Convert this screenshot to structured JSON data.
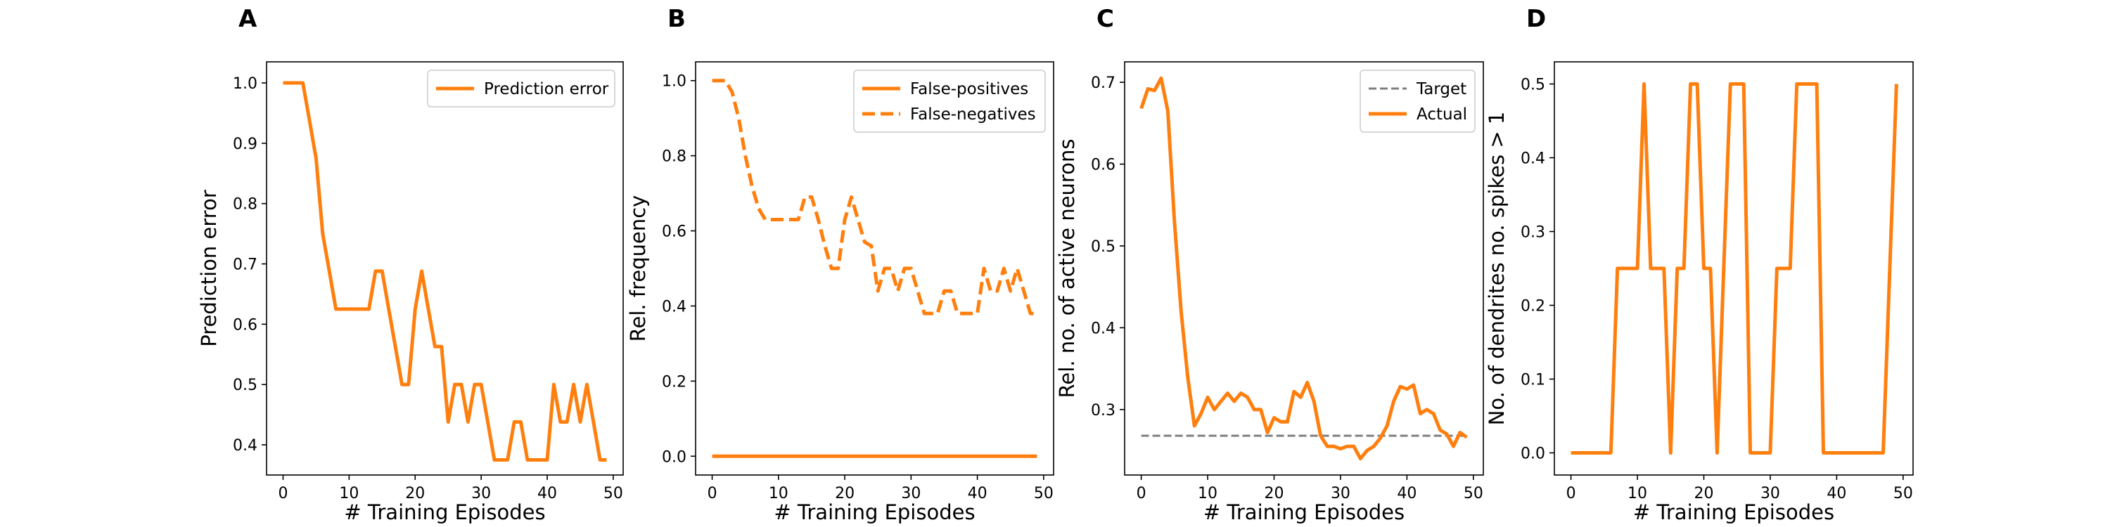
{
  "chart_data": [
    {
      "type": "line",
      "title": "A",
      "xlabel": "# Training Episodes",
      "ylabel": "Prediction error",
      "xlim": [
        -2.5,
        51.5
      ],
      "ylim": [
        0.35,
        1.035
      ],
      "xticks": [
        "0",
        "10",
        "20",
        "30",
        "40",
        "50"
      ],
      "yticks": [
        "0.4",
        "0.5",
        "0.6",
        "0.7",
        "0.8",
        "0.9",
        "1.0"
      ],
      "legend_position": "top-right",
      "grid": false,
      "series": [
        {
          "name": "Prediction error",
          "color": "#ff7f0e",
          "style": "solid",
          "x": [
            0,
            1,
            2,
            3,
            4,
            5,
            6,
            7,
            8,
            9,
            10,
            11,
            12,
            13,
            14,
            15,
            16,
            17,
            18,
            19,
            20,
            21,
            22,
            23,
            24,
            25,
            26,
            27,
            28,
            29,
            30,
            31,
            32,
            33,
            34,
            35,
            36,
            37,
            38,
            39,
            40,
            41,
            42,
            43,
            44,
            45,
            46,
            47,
            48,
            49
          ],
          "y": [
            1.0,
            1.0,
            1.0,
            1.0,
            0.938,
            0.875,
            0.75,
            0.688,
            0.625,
            0.625,
            0.625,
            0.625,
            0.625,
            0.625,
            0.688,
            0.688,
            0.625,
            0.563,
            0.5,
            0.5,
            0.625,
            0.688,
            0.625,
            0.563,
            0.563,
            0.438,
            0.5,
            0.5,
            0.438,
            0.5,
            0.5,
            0.438,
            0.375,
            0.375,
            0.375,
            0.438,
            0.438,
            0.375,
            0.375,
            0.375,
            0.375,
            0.5,
            0.438,
            0.438,
            0.5,
            0.438,
            0.5,
            0.438,
            0.375,
            0.375
          ]
        }
      ]
    },
    {
      "type": "line",
      "title": "B",
      "xlabel": "# Training Episodes",
      "ylabel": "Rel. frequency",
      "xlim": [
        -2.5,
        51.5
      ],
      "ylim": [
        -0.05,
        1.05
      ],
      "xticks": [
        "0",
        "10",
        "20",
        "30",
        "40",
        "50"
      ],
      "yticks": [
        "0.0",
        "0.2",
        "0.4",
        "0.6",
        "0.8",
        "1.0"
      ],
      "legend_position": "top-right",
      "grid": false,
      "series": [
        {
          "name": "False-positives",
          "color": "#ff7f0e",
          "style": "solid",
          "x": [
            0,
            1,
            2,
            3,
            4,
            5,
            6,
            7,
            8,
            9,
            10,
            11,
            12,
            13,
            14,
            15,
            16,
            17,
            18,
            19,
            20,
            21,
            22,
            23,
            24,
            25,
            26,
            27,
            28,
            29,
            30,
            31,
            32,
            33,
            34,
            35,
            36,
            37,
            38,
            39,
            40,
            41,
            42,
            43,
            44,
            45,
            46,
            47,
            48,
            49
          ],
          "y": [
            0,
            0,
            0,
            0,
            0,
            0,
            0,
            0,
            0,
            0,
            0,
            0,
            0,
            0,
            0,
            0,
            0,
            0,
            0,
            0,
            0,
            0,
            0,
            0,
            0,
            0,
            0,
            0,
            0,
            0,
            0,
            0,
            0,
            0,
            0,
            0,
            0,
            0,
            0,
            0,
            0,
            0,
            0,
            0,
            0,
            0,
            0,
            0,
            0,
            0
          ]
        },
        {
          "name": "False-negatives",
          "color": "#ff7f0e",
          "style": "dashed",
          "x": [
            0,
            1,
            2,
            3,
            4,
            5,
            6,
            7,
            8,
            9,
            10,
            11,
            12,
            13,
            14,
            15,
            16,
            17,
            18,
            19,
            20,
            21,
            22,
            23,
            24,
            25,
            26,
            27,
            28,
            29,
            30,
            31,
            32,
            33,
            34,
            35,
            36,
            37,
            38,
            39,
            40,
            41,
            42,
            43,
            44,
            45,
            46,
            47,
            48,
            49
          ],
          "y": [
            1.0,
            1.0,
            1.0,
            0.97,
            0.9,
            0.8,
            0.72,
            0.66,
            0.63,
            0.63,
            0.63,
            0.63,
            0.63,
            0.63,
            0.69,
            0.69,
            0.63,
            0.56,
            0.5,
            0.5,
            0.63,
            0.69,
            0.63,
            0.57,
            0.56,
            0.44,
            0.5,
            0.5,
            0.44,
            0.5,
            0.5,
            0.44,
            0.38,
            0.38,
            0.38,
            0.44,
            0.44,
            0.38,
            0.38,
            0.38,
            0.38,
            0.5,
            0.44,
            0.44,
            0.5,
            0.44,
            0.5,
            0.44,
            0.38,
            0.38
          ]
        }
      ]
    },
    {
      "type": "line",
      "title": "C",
      "xlabel": "# Training Episodes",
      "ylabel": "Rel. no. of active neurons",
      "xlim": [
        -2.5,
        51.5
      ],
      "ylim": [
        0.22,
        0.725
      ],
      "xticks": [
        "0",
        "10",
        "20",
        "30",
        "40",
        "50"
      ],
      "yticks": [
        "0.3",
        "0.4",
        "0.5",
        "0.6",
        "0.7"
      ],
      "legend_position": "top-right",
      "grid": false,
      "series": [
        {
          "name": "Target",
          "color": "#7f7f7f",
          "style": "dashed",
          "x": [
            0,
            49
          ],
          "y": [
            0.268,
            0.268
          ]
        },
        {
          "name": "Actual",
          "color": "#ff7f0e",
          "style": "solid",
          "x": [
            0,
            1,
            2,
            3,
            4,
            5,
            6,
            7,
            8,
            9,
            10,
            11,
            12,
            13,
            14,
            15,
            16,
            17,
            18,
            19,
            20,
            21,
            22,
            23,
            24,
            25,
            26,
            27,
            28,
            29,
            30,
            31,
            32,
            33,
            34,
            35,
            36,
            37,
            38,
            39,
            40,
            41,
            42,
            43,
            44,
            45,
            46,
            47,
            48,
            49
          ],
          "y": [
            0.668,
            0.692,
            0.69,
            0.705,
            0.665,
            0.53,
            0.42,
            0.34,
            0.28,
            0.295,
            0.315,
            0.3,
            0.31,
            0.32,
            0.31,
            0.32,
            0.315,
            0.3,
            0.3,
            0.272,
            0.29,
            0.285,
            0.285,
            0.322,
            0.315,
            0.333,
            0.31,
            0.268,
            0.255,
            0.255,
            0.252,
            0.255,
            0.255,
            0.24,
            0.25,
            0.255,
            0.265,
            0.28,
            0.31,
            0.328,
            0.325,
            0.33,
            0.295,
            0.3,
            0.295,
            0.275,
            0.27,
            0.255,
            0.272,
            0.266
          ]
        }
      ]
    },
    {
      "type": "line",
      "title": "D",
      "xlabel": "# Training Episodes",
      "ylabel": "No. of dendrites no. spikes > 1",
      "xlim": [
        -2.5,
        51.5
      ],
      "ylim": [
        -0.03,
        0.53
      ],
      "xticks": [
        "0",
        "10",
        "20",
        "30",
        "40",
        "50"
      ],
      "yticks": [
        "0.0",
        "0.1",
        "0.2",
        "0.3",
        "0.4",
        "0.5"
      ],
      "legend_position": "none",
      "grid": false,
      "series": [
        {
          "name": "",
          "color": "#ff7f0e",
          "style": "solid",
          "x": [
            0,
            1,
            2,
            3,
            4,
            5,
            6,
            7,
            8,
            9,
            10,
            11,
            12,
            13,
            14,
            15,
            16,
            17,
            18,
            19,
            20,
            21,
            22,
            23,
            24,
            25,
            26,
            27,
            28,
            29,
            30,
            31,
            32,
            33,
            34,
            35,
            36,
            37,
            38,
            39,
            40,
            41,
            42,
            43,
            44,
            45,
            46,
            47,
            48,
            49
          ],
          "y": [
            0,
            0,
            0,
            0,
            0,
            0,
            0,
            0.25,
            0.25,
            0.25,
            0.25,
            0.5,
            0.25,
            0.25,
            0.25,
            0,
            0.25,
            0.25,
            0.5,
            0.5,
            0.25,
            0.25,
            0,
            0.25,
            0.5,
            0.5,
            0.5,
            0,
            0,
            0,
            0,
            0.25,
            0.25,
            0.25,
            0.5,
            0.5,
            0.5,
            0.5,
            0,
            0,
            0,
            0,
            0,
            0,
            0,
            0,
            0,
            0,
            0.25,
            0.5
          ]
        }
      ]
    }
  ]
}
